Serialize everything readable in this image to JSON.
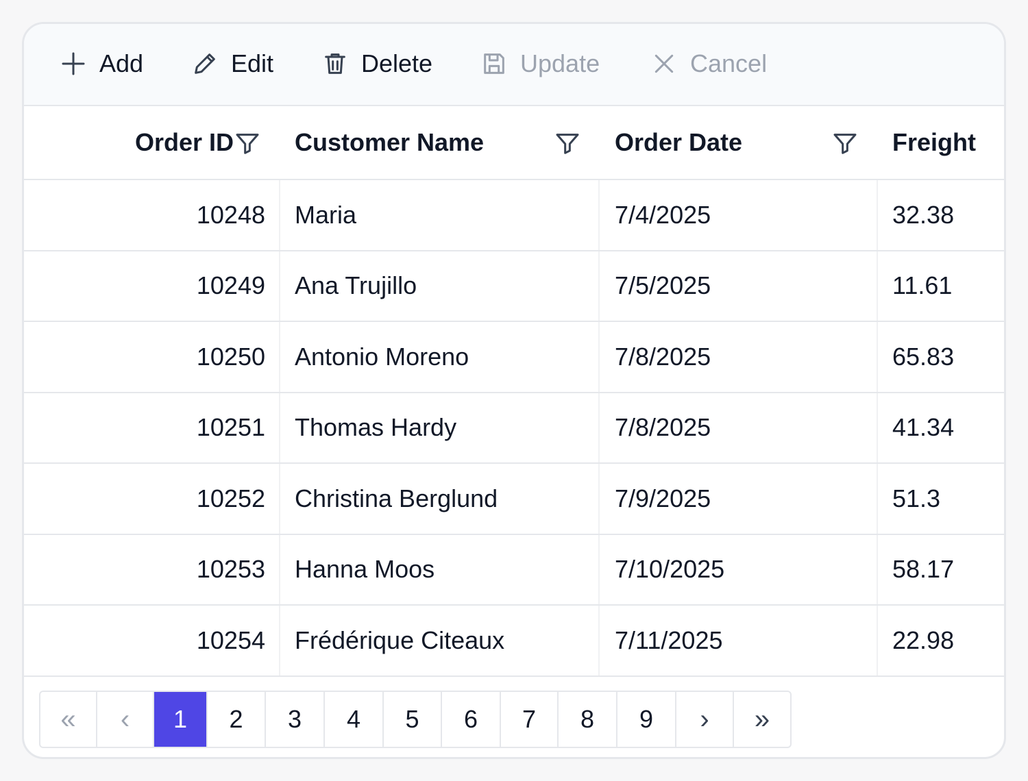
{
  "toolbar": {
    "items": [
      {
        "label": "Add",
        "icon": "plus-icon",
        "enabled": true
      },
      {
        "label": "Edit",
        "icon": "pencil-icon",
        "enabled": true
      },
      {
        "label": "Delete",
        "icon": "trash-icon",
        "enabled": true
      },
      {
        "label": "Update",
        "icon": "save-icon",
        "enabled": false
      },
      {
        "label": "Cancel",
        "icon": "close-icon",
        "enabled": false
      }
    ]
  },
  "grid": {
    "columns": [
      "Order ID",
      "Customer Name",
      "Order Date",
      "Freight"
    ],
    "rows": [
      [
        "10248",
        "Maria",
        "7/4/2025",
        "32.38"
      ],
      [
        "10249",
        "Ana Trujillo",
        "7/5/2025",
        "11.61"
      ],
      [
        "10250",
        "Antonio Moreno",
        "7/8/2025",
        "65.83"
      ],
      [
        "10251",
        "Thomas Hardy",
        "7/8/2025",
        "41.34"
      ],
      [
        "10252",
        "Christina Berglund",
        "7/9/2025",
        "51.3"
      ],
      [
        "10253",
        "Hanna Moos",
        "7/10/2025",
        "58.17"
      ],
      [
        "10254",
        "Frédérique Citeaux",
        "7/11/2025",
        "22.98"
      ]
    ]
  },
  "pager": {
    "first": "«",
    "prev": "‹",
    "pages": [
      "1",
      "2",
      "3",
      "4",
      "5",
      "6",
      "7",
      "8",
      "9"
    ],
    "next": "›",
    "last": "»",
    "current_page": "1"
  },
  "colors": {
    "accent": "#4f46e5",
    "border": "#e5e7eb",
    "toolbar_bg": "#f8fafc",
    "disabled_text": "#9ca3af"
  }
}
